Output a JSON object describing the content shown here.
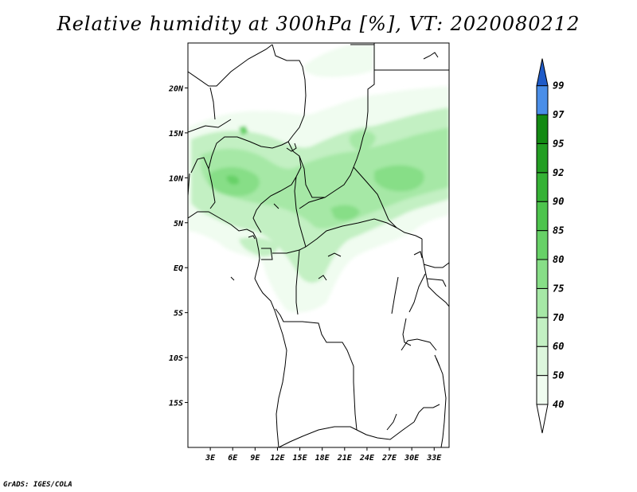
{
  "title": "Relative humidity at 300hPa [%], VT: 2020080212",
  "credit": "GrADS: IGES/COLA",
  "map": {
    "variable": "Relative humidity",
    "level": "300hPa",
    "units": "%",
    "valid_time": "2020080212",
    "lon_range": [
      0,
      35
    ],
    "lat_range": [
      -20,
      25
    ],
    "lat_labels": [
      "20N",
      "15N",
      "10N",
      "5N",
      "EQ",
      "5S",
      "10S",
      "15S"
    ],
    "lon_labels": [
      "3E",
      "6E",
      "9E",
      "12E",
      "15E",
      "18E",
      "21E",
      "24E",
      "27E",
      "30E",
      "33E"
    ]
  },
  "colorbar": {
    "labels": [
      "40",
      "50",
      "60",
      "70",
      "75",
      "80",
      "85",
      "90",
      "92",
      "95",
      "97",
      "99"
    ],
    "colors": {
      "c40": "#f0fcf0",
      "c50": "#dcf6dc",
      "c60": "#c3f0c3",
      "c70": "#a6e8a6",
      "c75": "#87de87",
      "c80": "#67d167",
      "c85": "#4dc44d",
      "c90": "#35b235",
      "c92": "#239e23",
      "c95": "#138a13",
      "c97": "#4a8ee8",
      "c99": "#2c6fd8",
      "top": "#1f5bc8",
      "bottom": "#ffffff"
    }
  }
}
